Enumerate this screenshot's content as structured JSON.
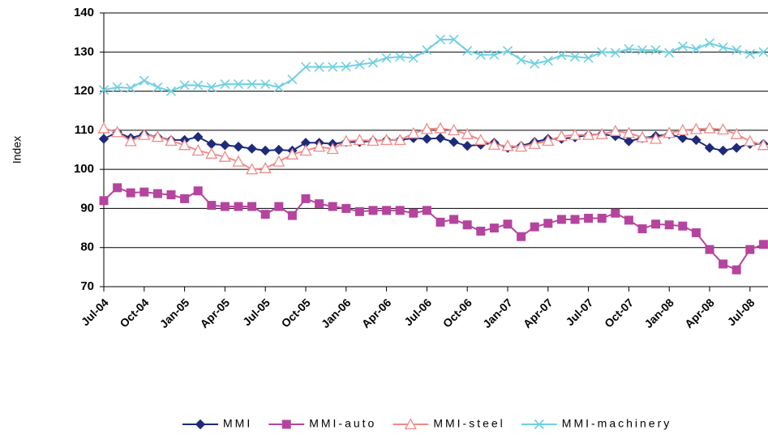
{
  "chart_data": {
    "type": "line",
    "y_label": "Index",
    "categories": [
      "Jul-04",
      null,
      null,
      "Oct-04",
      null,
      null,
      "Jan-05",
      null,
      null,
      "Apr-05",
      null,
      null,
      "Jul-05",
      null,
      null,
      "Oct-05",
      null,
      null,
      "Jan-06",
      null,
      null,
      "Apr-06",
      null,
      null,
      "Jul-06",
      null,
      null,
      "Oct-06",
      null,
      null,
      "Jan-07",
      null,
      null,
      "Apr-07",
      null,
      null,
      "Jul-07",
      null,
      null,
      "Oct-07",
      null,
      null,
      "Jan-08",
      null,
      null,
      "Apr-08",
      null,
      null,
      "Jul-08",
      null
    ],
    "series": [
      {
        "name": "MMI",
        "color": "#1f2a7a",
        "marker": "diamond",
        "values": [
          107.8,
          109.5,
          108,
          109,
          108.3,
          107.5,
          107.5,
          108.3,
          106.5,
          106.2,
          105.8,
          105.3,
          104.8,
          105,
          104.8,
          106.8,
          106.8,
          106.5,
          107,
          107,
          107.3,
          107.5,
          107.5,
          108,
          107.8,
          108,
          107,
          106,
          106.3,
          106.8,
          105.5,
          106,
          107,
          107.8,
          107.8,
          108.2,
          108.8,
          109,
          108.5,
          107.2,
          108,
          108.5,
          109,
          108,
          107.5,
          105.5,
          104.8,
          105.5,
          106.5,
          106.5
        ]
      },
      {
        "name": "MMI-auto",
        "color": "#b5449e",
        "marker": "square",
        "values": [
          92,
          95.3,
          94,
          94.2,
          93.8,
          93.5,
          92.5,
          94.5,
          90.8,
          90.5,
          90.5,
          90.5,
          88.5,
          90.5,
          88.2,
          92.5,
          91.2,
          90.5,
          90,
          89.2,
          89.5,
          89.5,
          89.5,
          88.8,
          89.5,
          86.5,
          87.2,
          85.8,
          84.2,
          85,
          86,
          82.8,
          85.3,
          86.2,
          87.2,
          87.2,
          87.5,
          87.5,
          88.8,
          87,
          84.8,
          86,
          85.8,
          85.5,
          83.8,
          79.5,
          75.8,
          74.3,
          79.5,
          80.8
        ]
      },
      {
        "name": "MMI-steel",
        "color": "#f08a8a",
        "marker": "triangle",
        "values": [
          110.5,
          109.5,
          107.2,
          108.8,
          108.3,
          107.3,
          106.2,
          104.8,
          104,
          103.2,
          102,
          100,
          100.3,
          102,
          103.8,
          104.8,
          105.8,
          105.2,
          107.2,
          107.5,
          107.3,
          107.5,
          107.5,
          109.2,
          110.3,
          110.5,
          110,
          109,
          107.5,
          106.3,
          106,
          105.8,
          106.5,
          107.3,
          108.5,
          108.8,
          108.8,
          109,
          109.8,
          109.3,
          108.2,
          107.8,
          109.3,
          110,
          110.3,
          110.5,
          110.2,
          109,
          107.2,
          106.2
        ]
      },
      {
        "name": "MMI-machinery",
        "color": "#6fd0e0",
        "marker": "x",
        "values": [
          120.3,
          121,
          120.8,
          122.7,
          121,
          120,
          121.5,
          121.5,
          121,
          121.8,
          121.8,
          121.8,
          121.8,
          121,
          123,
          126.2,
          126.2,
          126.2,
          126.3,
          126.8,
          127.3,
          128.5,
          128.8,
          128.5,
          130.5,
          133.2,
          133.2,
          130.3,
          129.3,
          129.3,
          130.3,
          128,
          127,
          127.8,
          129.2,
          128.8,
          128.5,
          130,
          129.8,
          130.8,
          130.5,
          130.5,
          129.8,
          131.5,
          130.8,
          132.3,
          131.2,
          130.5,
          129.5,
          130
        ]
      }
    ],
    "ylim": [
      70,
      140
    ],
    "yticks": [
      70,
      80,
      90,
      100,
      110,
      120,
      130,
      140
    ],
    "grid": true,
    "legend": "bottom"
  }
}
